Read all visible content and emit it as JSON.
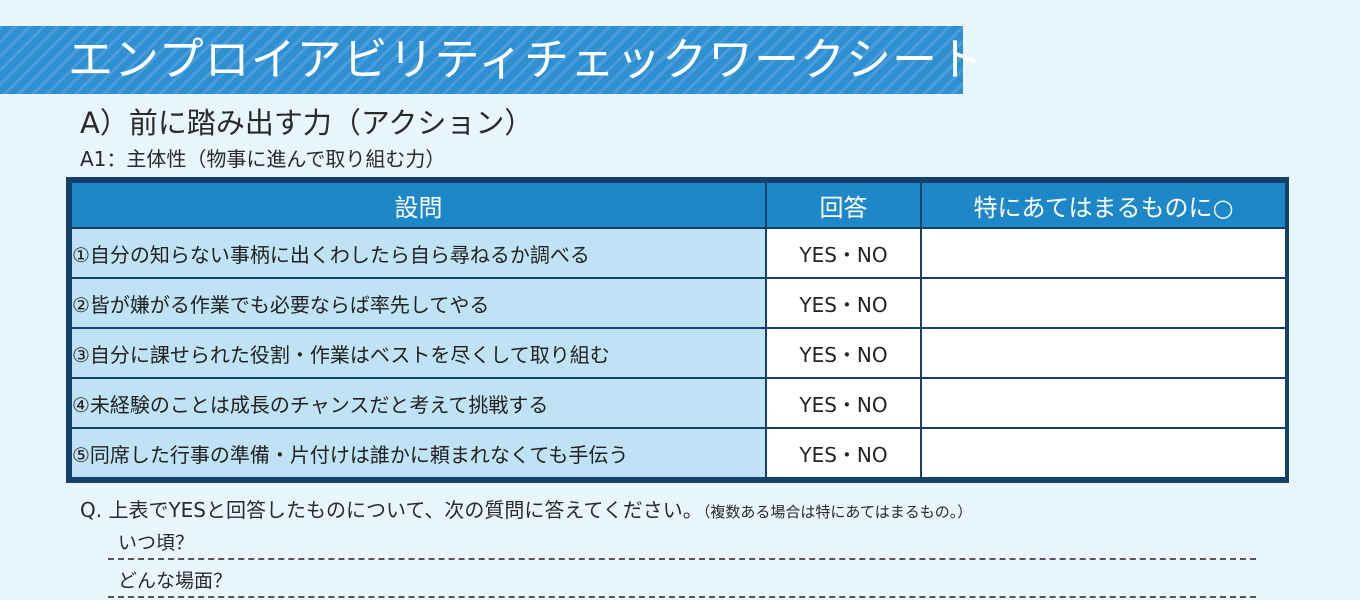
{
  "banner": {
    "title": "エンプロイアビリティチェックワークシート"
  },
  "section": {
    "title": "A）前に踏み出す力（アクション）",
    "subtitle": "A1：主体性（物事に進んで取り組む力）"
  },
  "table": {
    "headers": {
      "question": "設問",
      "answer": "回答",
      "mark": "特にあてはまるものに○"
    },
    "rows": [
      {
        "question": "①自分の知らない事柄に出くわしたら自ら尋ねるか調べる",
        "answer": "YES・NO"
      },
      {
        "question": "②皆が嫌がる作業でも必要ならば率先してやる",
        "answer": "YES・NO"
      },
      {
        "question": "③自分に課せられた役割・作業はベストを尽くして取り組む",
        "answer": "YES・NO"
      },
      {
        "question": "④未経験のことは成長のチャンスだと考えて挑戦する",
        "answer": "YES・NO"
      },
      {
        "question": "⑤同席した行事の準備・片付けは誰かに頼まれなくても手伝う",
        "answer": "YES・NO"
      }
    ]
  },
  "followup": {
    "question": "Q. 上表でYESと回答したものについて、次の質問に答えてください。",
    "note": "（複数ある場合は特にあてはまるもの。）",
    "prompts": [
      "いつ頃？",
      "どんな場面？"
    ]
  }
}
